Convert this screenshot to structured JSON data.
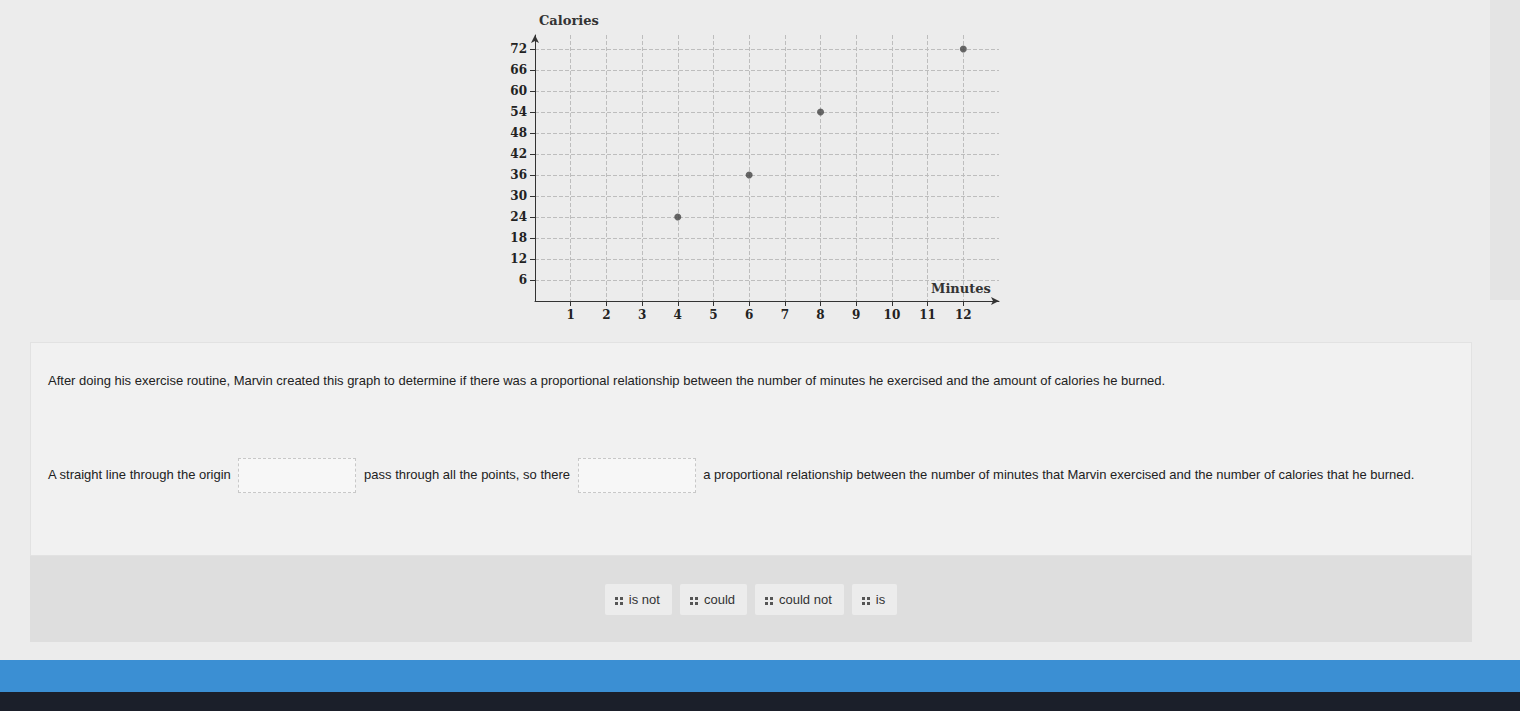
{
  "chart_data": {
    "type": "scatter",
    "x_label": "Minutes",
    "y_label": "Calories",
    "x": [
      4,
      6,
      8,
      12
    ],
    "values": [
      24,
      36,
      54,
      72
    ],
    "color": "#444444",
    "marker": "circle",
    "xlim": [
      0,
      13
    ],
    "ylim": [
      0,
      76
    ],
    "xticks": [
      1,
      2,
      3,
      4,
      5,
      6,
      7,
      8,
      9,
      10,
      11,
      12
    ],
    "yticks": [
      6,
      12,
      18,
      24,
      30,
      36,
      42,
      48,
      54,
      60,
      66,
      72
    ],
    "grid": true
  },
  "prompt": "After doing his exercise routine, Marvin created this graph to determine if there was a proportional relationship between the number of minutes he exercised and the amount of calories he burned.",
  "sentence": [
    "A straight line through the origin",
    "pass through all the points, so there",
    "a proportional relationship between the number of minutes that Marvin exercised and the number of calories that he burned."
  ],
  "choices": [
    "is not",
    "could",
    "could not",
    "is"
  ]
}
